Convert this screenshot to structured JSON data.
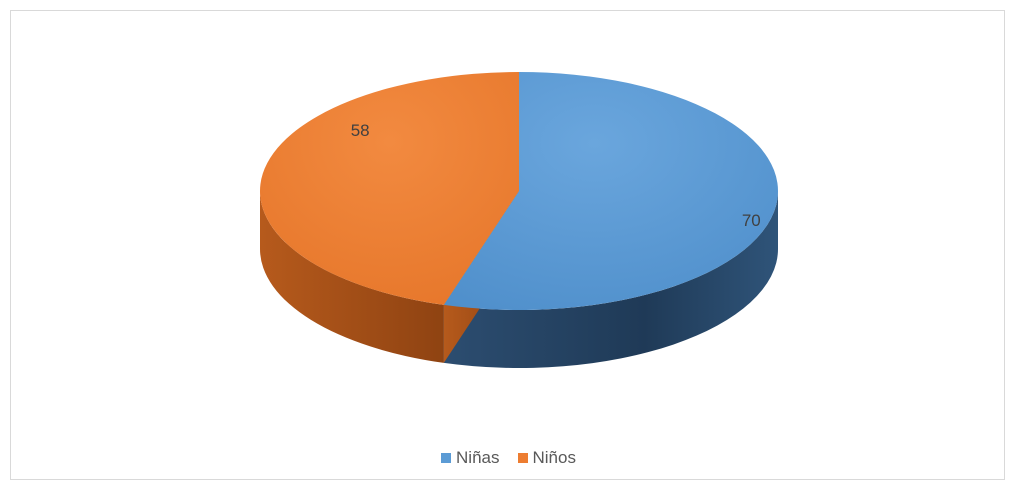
{
  "chart_data": {
    "type": "pie",
    "style": "3d",
    "categories": [
      "Niñas",
      "Niños"
    ],
    "values": [
      70,
      58
    ],
    "colors": [
      "#5b9bd5",
      "#ed7d31"
    ],
    "data_labels": [
      "70",
      "58"
    ],
    "title": "",
    "legend_position": "bottom"
  },
  "legend": {
    "items": [
      {
        "label": "Niñas",
        "color": "#5b9bd5"
      },
      {
        "label": "Niños",
        "color": "#ed7d31"
      }
    ]
  }
}
